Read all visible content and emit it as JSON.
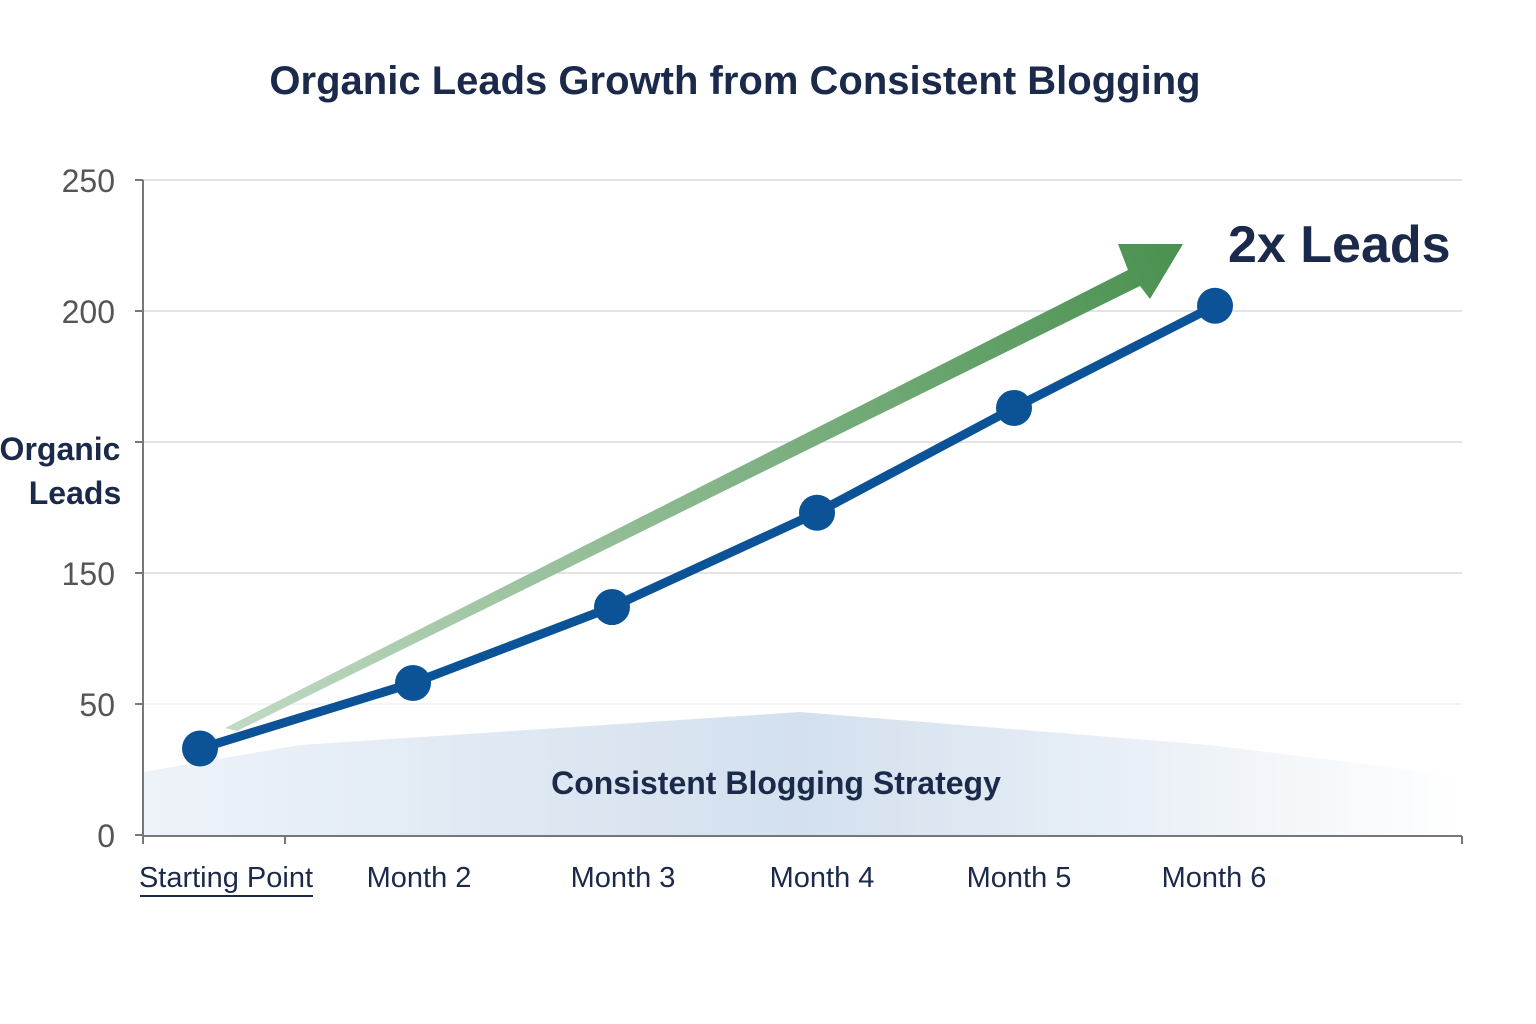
{
  "chart_data": {
    "type": "line",
    "title": "Organic Leads Growth from Consistent Blogging",
    "xlabel": "",
    "ylabel": "Organic Leads",
    "categories": [
      "Starting Point",
      "Month 2",
      "Month 3",
      "Month 4",
      "Month 5",
      "Month 6"
    ],
    "series": [
      {
        "name": "Organic Leads",
        "values": [
          33,
          58,
          87,
          123,
          163,
          202
        ],
        "color": "#0b5396"
      }
    ],
    "ylim": [
      0,
      250
    ],
    "ytick_labels": [
      "0",
      "50",
      "150",
      "",
      "200",
      "250"
    ],
    "grid": true,
    "annotations": {
      "growth_label": "2x Leads",
      "band_label": "Consistent Blogging Strategy"
    },
    "colors": {
      "line": "#0b5396",
      "arrow": "#4f9556",
      "band": "#d5e2ef",
      "title": "#1b2a4a"
    }
  }
}
